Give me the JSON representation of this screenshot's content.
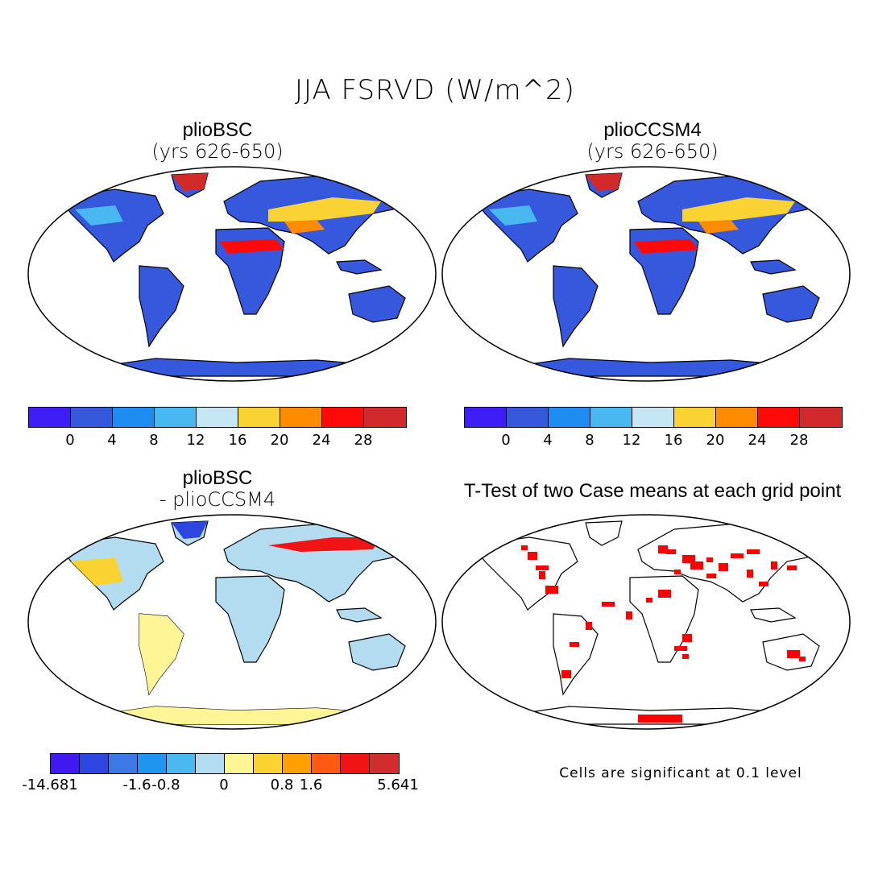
{
  "main_title": "JJA FSRVD (W/m^2)",
  "panels": [
    {
      "id": "a",
      "title": "plioBSC",
      "subtitle": "(yrs 626-650)",
      "fill": "abs"
    },
    {
      "id": "b",
      "title": "plioCCSM4",
      "subtitle": "(yrs 626-650)",
      "fill": "abs"
    },
    {
      "id": "c",
      "title": "plioBSC",
      "subtitle": "- plioCCSM4",
      "fill": "diff"
    },
    {
      "id": "d",
      "title": "T-Test of two Case means at each grid point",
      "subtitle": "",
      "fill": "ttest"
    }
  ],
  "colorbar_abs": {
    "colors": [
      "#3f1ef5",
      "#3558dc",
      "#1e8cf0",
      "#4ab8f0",
      "#c4e6f5",
      "#fbd234",
      "#ff8c00",
      "#ff0a0a",
      "#d22a2a"
    ],
    "labels": [
      "0",
      "4",
      "8",
      "12",
      "16",
      "20",
      "24",
      "28"
    ]
  },
  "colorbar_diff": {
    "colors": [
      "#4019f2",
      "#2d46e0",
      "#3c78e6",
      "#1e96f0",
      "#4bb9f0",
      "#b4dcf0",
      "#fff596",
      "#fad232",
      "#ffa000",
      "#ff5a14",
      "#f01414",
      "#d22d2d"
    ],
    "labels": [
      "-14.681",
      "-1.6",
      "-0.8",
      "0",
      "0.8",
      "1.6",
      "5.641"
    ]
  },
  "significance_color": "#ff0000",
  "note": "Cells are significant at 0.1 level"
}
